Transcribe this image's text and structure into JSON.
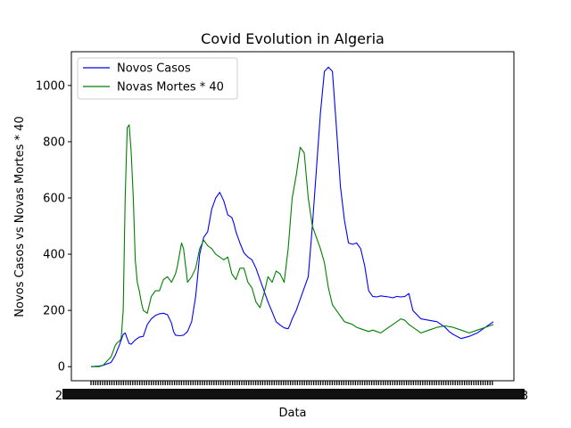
{
  "chart_data": {
    "type": "line",
    "title": "Covid Evolution in Algeria",
    "xlabel": "Data",
    "ylabel": "Novos Casos vs Novas Mortes * 40",
    "ylim": [
      -50,
      1120
    ],
    "yticks": [
      0,
      200,
      400,
      600,
      800,
      1000
    ],
    "x_index_range": [
      0,
      1000
    ],
    "x_tick_labels_note": "Dense overlapping date tick labels at the bottom of the plot",
    "x_first_tick_label": "2",
    "x_last_tick_label": "3",
    "grid": false,
    "legend_position": "top-left",
    "series": [
      {
        "name": "Novos Casos",
        "color": "#0000ff",
        "x": [
          0,
          20,
          30,
          50,
          60,
          70,
          80,
          85,
          90,
          95,
          100,
          110,
          120,
          130,
          140,
          150,
          160,
          170,
          180,
          190,
          200,
          205,
          210,
          220,
          230,
          240,
          250,
          260,
          265,
          270,
          280,
          290,
          300,
          310,
          320,
          330,
          340,
          350,
          355,
          360,
          370,
          380,
          390,
          400,
          410,
          420,
          430,
          440,
          450,
          460,
          470,
          480,
          490,
          495,
          500,
          510,
          520,
          530,
          540,
          550,
          560,
          570,
          580,
          590,
          600,
          610,
          620,
          630,
          640,
          650,
          660,
          670,
          680,
          690,
          700,
          710,
          720,
          730,
          740,
          750,
          760,
          770,
          780,
          790,
          800,
          820,
          840,
          860,
          870,
          880,
          890,
          900,
          920,
          940,
          960,
          970,
          980,
          1000
        ],
        "values": [
          0,
          2,
          5,
          15,
          40,
          75,
          115,
          120,
          100,
          82,
          80,
          95,
          105,
          108,
          150,
          170,
          182,
          188,
          190,
          185,
          155,
          125,
          112,
          110,
          112,
          125,
          160,
          250,
          320,
          400,
          460,
          480,
          560,
          600,
          620,
          590,
          540,
          530,
          510,
          480,
          440,
          405,
          390,
          380,
          350,
          310,
          270,
          230,
          195,
          160,
          148,
          138,
          135,
          150,
          170,
          200,
          240,
          280,
          320,
          500,
          700,
          900,
          1050,
          1065,
          1050,
          850,
          640,
          520,
          440,
          435,
          440,
          420,
          360,
          270,
          250,
          248,
          252,
          250,
          248,
          245,
          250,
          248,
          250,
          260,
          200,
          170,
          165,
          160,
          150,
          140,
          125,
          115,
          100,
          108,
          120,
          130,
          140,
          160
        ]
      },
      {
        "name": "Novas Mortes * 40",
        "color": "#008000",
        "x": [
          0,
          20,
          30,
          40,
          50,
          55,
          60,
          65,
          70,
          75,
          80,
          85,
          90,
          95,
          100,
          105,
          110,
          115,
          120,
          125,
          130,
          140,
          150,
          160,
          170,
          180,
          190,
          200,
          210,
          215,
          220,
          225,
          230,
          240,
          250,
          260,
          270,
          280,
          290,
          300,
          310,
          320,
          330,
          340,
          350,
          360,
          370,
          380,
          390,
          400,
          410,
          420,
          430,
          440,
          450,
          460,
          470,
          480,
          490,
          500,
          510,
          520,
          530,
          540,
          550,
          560,
          570,
          580,
          590,
          600,
          610,
          620,
          630,
          640,
          650,
          660,
          670,
          680,
          690,
          700,
          710,
          720,
          730,
          740,
          750,
          760,
          770,
          780,
          790,
          800,
          810,
          820,
          840,
          860,
          880,
          900,
          920,
          940,
          960,
          980,
          1000
        ],
        "values": [
          0,
          0,
          5,
          20,
          35,
          55,
          75,
          85,
          90,
          100,
          200,
          600,
          850,
          860,
          760,
          600,
          380,
          300,
          270,
          230,
          200,
          190,
          250,
          270,
          270,
          310,
          320,
          300,
          330,
          360,
          400,
          440,
          420,
          300,
          320,
          350,
          420,
          450,
          430,
          420,
          400,
          390,
          380,
          390,
          330,
          310,
          350,
          350,
          300,
          280,
          230,
          210,
          260,
          320,
          300,
          340,
          330,
          300,
          420,
          600,
          680,
          780,
          760,
          600,
          500,
          460,
          420,
          370,
          280,
          220,
          200,
          180,
          160,
          155,
          150,
          140,
          135,
          130,
          125,
          130,
          125,
          120,
          130,
          140,
          150,
          160,
          170,
          165,
          150,
          140,
          130,
          120,
          130,
          140,
          145,
          140,
          130,
          120,
          130,
          140,
          150
        ]
      }
    ]
  }
}
